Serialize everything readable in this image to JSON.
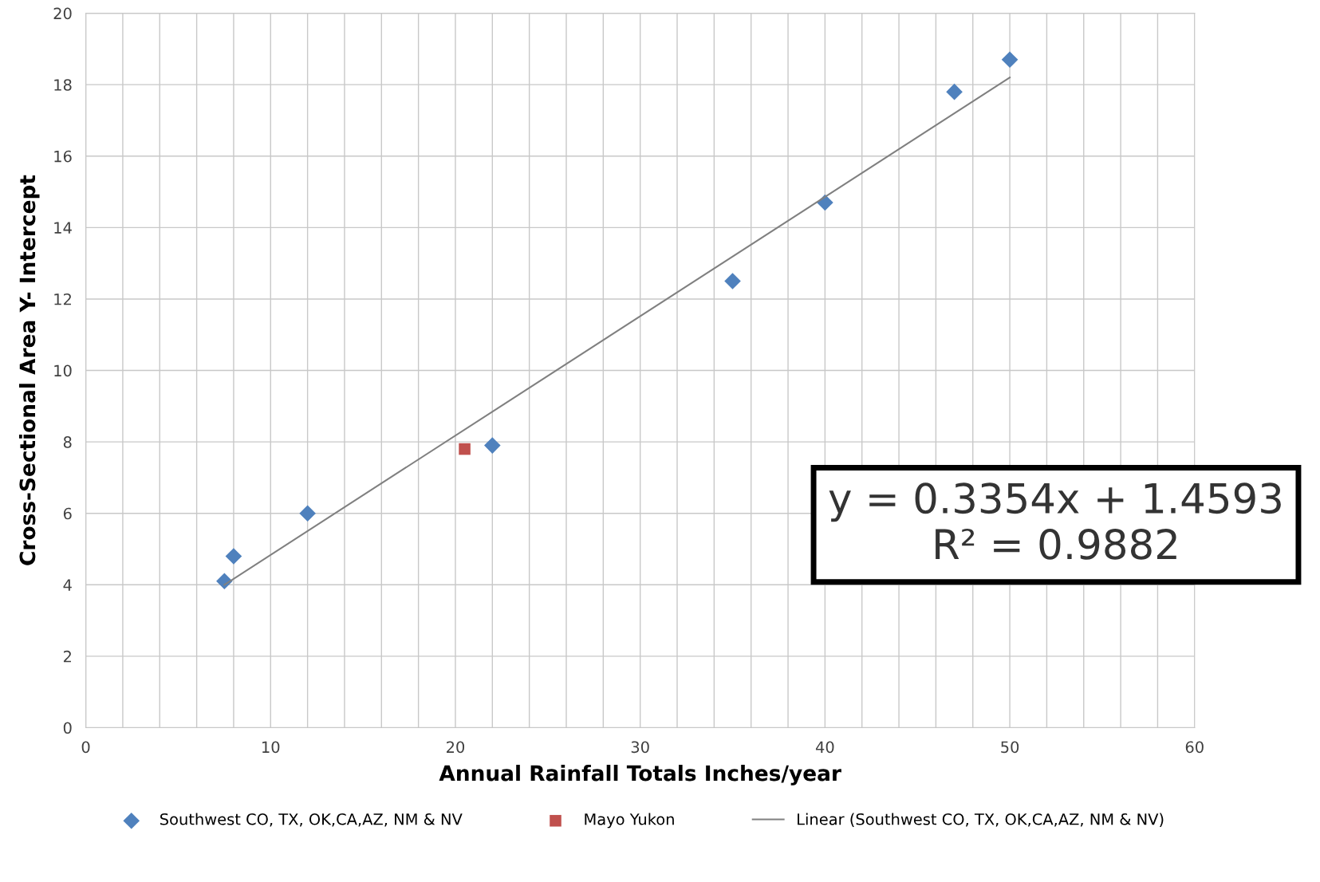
{
  "chart_data": {
    "type": "scatter",
    "xlabel": "Annual Rainfall Totals Inches/year",
    "ylabel": "Cross-Sectional Area Y- Intercept",
    "xlim": [
      0,
      60
    ],
    "xticks": [
      0,
      {
        "value": 2,
        "label": null
      },
      {
        "value": 4,
        "label": null
      },
      {
        "value": 6,
        "label": null
      },
      {
        "value": 8,
        "label": null
      },
      10,
      {
        "value": 12,
        "label": null
      },
      {
        "value": 14,
        "label": null
      },
      {
        "value": 16,
        "label": null
      },
      {
        "value": 18,
        "label": null
      },
      20,
      {
        "value": 22,
        "label": null
      },
      {
        "value": 24,
        "label": null
      },
      {
        "value": 26,
        "label": null
      },
      {
        "value": 28,
        "label": null
      },
      30,
      {
        "value": 32,
        "label": null
      },
      {
        "value": 34,
        "label": null
      },
      {
        "value": 36,
        "label": null
      },
      {
        "value": 38,
        "label": null
      },
      40,
      {
        "value": 42,
        "label": null
      },
      {
        "value": 44,
        "label": null
      },
      {
        "value": 46,
        "label": null
      },
      {
        "value": 48,
        "label": null
      },
      50,
      {
        "value": 52,
        "label": null
      },
      {
        "value": 54,
        "label": null
      },
      {
        "value": 56,
        "label": null
      },
      {
        "value": 58,
        "label": null
      },
      60
    ],
    "ylim": [
      0,
      20
    ],
    "yticks": [
      0,
      2,
      4,
      6,
      8,
      10,
      12,
      14,
      16,
      18,
      20
    ],
    "grid": true,
    "legend": "bottom",
    "series": [
      {
        "name": "Southwest CO, TX, OK,CA,AZ, NM & NV",
        "color": "#4f81bd",
        "marker": "diamond",
        "x": [
          7.5,
          8,
          12,
          22,
          35,
          40,
          47,
          50
        ],
        "values": [
          4.1,
          4.8,
          6.0,
          7.9,
          12.5,
          14.7,
          17.8,
          18.7
        ]
      },
      {
        "name": "Mayo Yukon",
        "color": "#c0504d",
        "marker": "square",
        "x": [
          20.5
        ],
        "values": [
          7.8
        ]
      },
      {
        "name": "Linear (Southwest CO, TX, OK,CA,AZ, NM & NV)",
        "type": "line",
        "color": "#808080",
        "line_style": "solid",
        "marker": "none",
        "x": [
          7.5,
          50
        ],
        "values": [
          4.0,
          18.2
        ]
      }
    ],
    "annotations": [
      "y = 0.3354x + 1.4593\nR² = 0.9882"
    ]
  }
}
